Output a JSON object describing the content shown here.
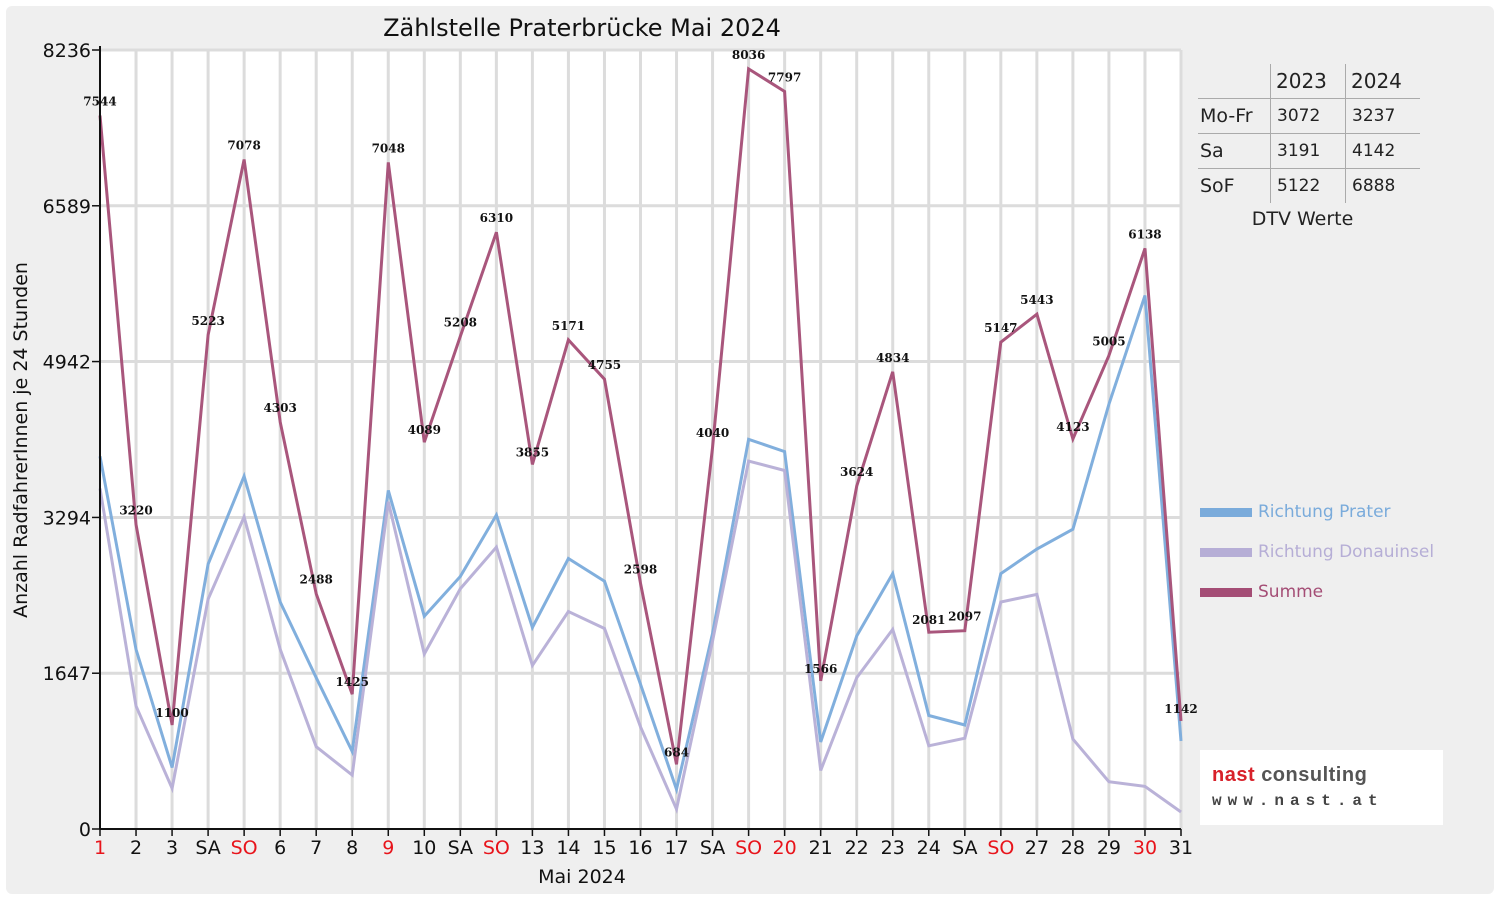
{
  "chart_data": {
    "type": "line",
    "title": "Zählstelle Praterbrücke Mai 2024",
    "xlabel": "Mai 2024",
    "ylabel": "Anzahl RadfahrerInnen je 24 Stunden",
    "ylim": [
      0,
      8236
    ],
    "yticks": [
      0,
      1647,
      3294,
      4942,
      6589,
      8236
    ],
    "grid": true,
    "legend_position": "right",
    "categories": [
      "1",
      "2",
      "3",
      "SA",
      "SO",
      "6",
      "7",
      "8",
      "9",
      "10",
      "SA",
      "SO",
      "13",
      "14",
      "15",
      "16",
      "17",
      "SA",
      "SO",
      "20",
      "21",
      "22",
      "23",
      "24",
      "SA",
      "SO",
      "27",
      "28",
      "29",
      "30",
      "31"
    ],
    "category_colors": [
      "#e8141b",
      "#111111",
      "#111111",
      "#111111",
      "#e8141b",
      "#111111",
      "#111111",
      "#111111",
      "#e8141b",
      "#111111",
      "#111111",
      "#e8141b",
      "#111111",
      "#111111",
      "#111111",
      "#111111",
      "#111111",
      "#111111",
      "#e8141b",
      "#e8141b",
      "#111111",
      "#111111",
      "#111111",
      "#111111",
      "#111111",
      "#e8141b",
      "#111111",
      "#111111",
      "#111111",
      "#e8141b",
      "#111111"
    ],
    "series": [
      {
        "name": "Richtung Prater",
        "color": "#7aabdb",
        "values": [
          3940,
          1900,
          650,
          2800,
          3730,
          2400,
          1600,
          820,
          3580,
          2250,
          2670,
          3320,
          2130,
          2860,
          2620,
          1530,
          420,
          2070,
          4120,
          3990,
          920,
          2040,
          2700,
          1200,
          1100,
          2700,
          2960,
          3170,
          4490,
          5640,
          930
        ]
      },
      {
        "name": "Richtung Donauinsel",
        "color": "#b6aed6",
        "values": [
          3600,
          1300,
          430,
          2430,
          3300,
          1900,
          870,
          570,
          3460,
          1850,
          2540,
          2980,
          1730,
          2300,
          2120,
          1080,
          210,
          1990,
          3890,
          3790,
          620,
          1600,
          2110,
          880,
          960,
          2400,
          2480,
          950,
          500,
          450,
          180
        ]
      },
      {
        "name": "Summe",
        "color": "#a44d75",
        "values": [
          7544,
          3220,
          1100,
          5223,
          7078,
          4303,
          2488,
          1425,
          7048,
          4089,
          5208,
          6310,
          3855,
          5171,
          4755,
          2598,
          684,
          4040,
          8036,
          7797,
          1566,
          3624,
          4834,
          2081,
          2097,
          5147,
          5443,
          4123,
          5005,
          6138,
          1142
        ]
      }
    ],
    "data_labels": [
      "7544",
      "3220",
      "1100",
      "5223",
      "7078",
      "4303",
      "2488",
      "1425",
      "7048",
      "4089",
      "5208",
      "6310",
      "3855",
      "5171",
      "4755",
      "2598",
      "684",
      "4040",
      "8036",
      "7797",
      "1566",
      "3624",
      "4834",
      "2081",
      "2097",
      "5147",
      "5443",
      "4123",
      "5005",
      "6138",
      "1142"
    ]
  },
  "dtv_table": {
    "columns": [
      "2023",
      "2024"
    ],
    "rows": [
      {
        "label": "Mo-Fr",
        "v2023": "3072",
        "v2024": "3237"
      },
      {
        "label": "Sa",
        "v2023": "3191",
        "v2024": "4142"
      },
      {
        "label": "SoF",
        "v2023": "5122",
        "v2024": "6888"
      }
    ],
    "caption": "DTV Werte"
  },
  "logo": {
    "word1": "nast",
    "word2": "consulting",
    "word1_color": "#d8212a",
    "word2_color": "#555555",
    "url": "www.nast.at"
  }
}
